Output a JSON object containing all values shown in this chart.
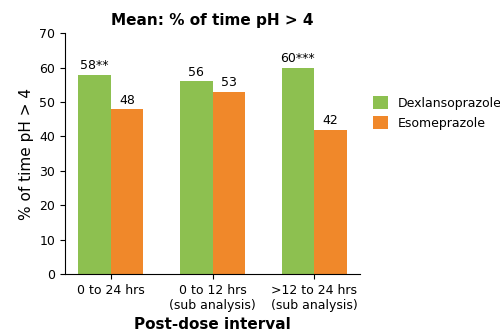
{
  "title": "Mean: % of time pH > 4",
  "xlabel": "Post-dose interval",
  "ylabel": "% of time pH > 4",
  "categories": [
    "0 to 24 hrs",
    "0 to 12 hrs\n(sub analysis)",
    ">12 to 24 hrs\n(sub analysis)"
  ],
  "dexlansoprazole_values": [
    58,
    56,
    60
  ],
  "esomeprazole_values": [
    48,
    53,
    42
  ],
  "dexlansoprazole_labels": [
    "58**",
    "56",
    "60***"
  ],
  "esomeprazole_labels": [
    "48",
    "53",
    "42"
  ],
  "dex_color": "#8dc050",
  "eso_color": "#f0882a",
  "ylim": [
    0,
    70
  ],
  "yticks": [
    0,
    10,
    20,
    30,
    40,
    50,
    60,
    70
  ],
  "bar_width": 0.32,
  "legend_labels": [
    "Dexlansoprazole",
    "Esomeprazole"
  ],
  "title_fontsize": 11,
  "axis_label_fontsize": 11,
  "tick_fontsize": 9,
  "bar_label_fontsize": 9,
  "legend_fontsize": 9
}
